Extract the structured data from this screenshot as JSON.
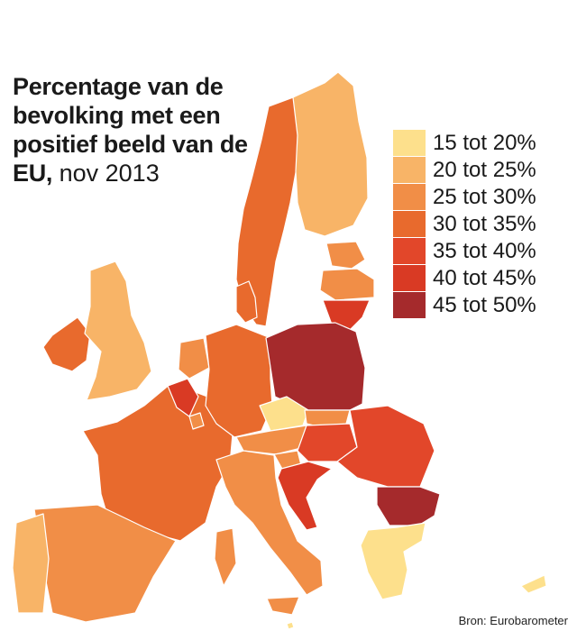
{
  "title": {
    "bold": "Percentage van de bevolking met een positief beeld van de EU,",
    "normal": " nov 2013"
  },
  "legend": [
    {
      "label": "15 tot 20%",
      "color": "#fde08c"
    },
    {
      "label": "20 tot 25%",
      "color": "#f8b467"
    },
    {
      "label": "25 tot 30%",
      "color": "#f18e47"
    },
    {
      "label": "30 tot 35%",
      "color": "#e86a2d"
    },
    {
      "label": "35 tot 40%",
      "color": "#e2472a"
    },
    {
      "label": "40 tot 45%",
      "color": "#d93a24"
    },
    {
      "label": "45 tot 50%",
      "color": "#a52a2c"
    }
  ],
  "source": "Bron: Eurobarometer",
  "countries": {
    "ireland": 3,
    "uk": 1,
    "portugal": 1,
    "spain": 2,
    "france": 3,
    "belgium": 5,
    "netherlands": 2,
    "luxembourg": 2,
    "germany": 3,
    "denmark": 3,
    "sweden": 3,
    "finland": 1,
    "estonia": 2,
    "latvia": 2,
    "lithuania": 5,
    "poland": 6,
    "czechia": 0,
    "slovakia": 2,
    "austria": 2,
    "hungary": 4,
    "slovenia": 2,
    "croatia": 5,
    "romania": 4,
    "bulgaria": 6,
    "italy": 2,
    "greece": 0,
    "cyprus": 0,
    "malta": 0
  }
}
